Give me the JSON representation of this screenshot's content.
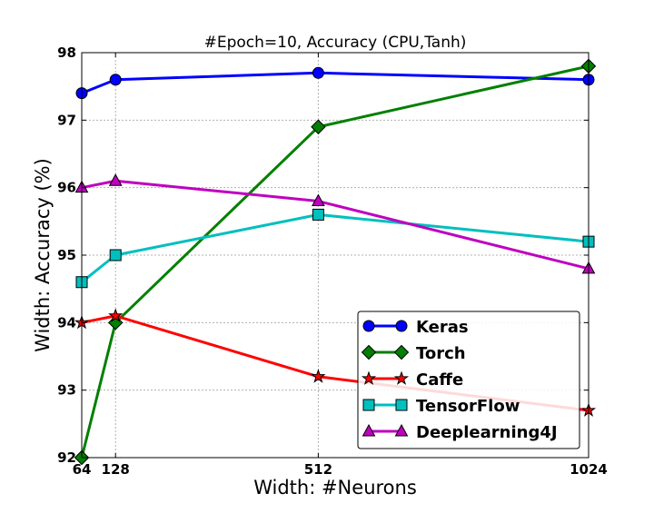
{
  "chart_data": {
    "type": "line",
    "title": "#Epoch=10, Accuracy (CPU,Tanh)",
    "xlabel": "Width: #Neurons",
    "ylabel": "Width: Accuracy (%)",
    "x": [
      64,
      128,
      512,
      1024
    ],
    "x_ticks": [
      "64",
      "128",
      "512",
      "1024"
    ],
    "xlim": [
      64,
      1024
    ],
    "ylim": [
      92,
      98
    ],
    "y_ticks": [
      "92",
      "93",
      "94",
      "95",
      "96",
      "97",
      "98"
    ],
    "grid": true,
    "legend_position": "lower-right",
    "series": [
      {
        "name": "Keras",
        "values": [
          97.4,
          97.6,
          97.7,
          97.6
        ],
        "color": "#0000ff",
        "marker": "circle"
      },
      {
        "name": "Torch",
        "values": [
          92.0,
          94.0,
          96.9,
          97.8
        ],
        "color": "#008000",
        "marker": "diamond"
      },
      {
        "name": "Caffe",
        "values": [
          94.0,
          94.1,
          93.2,
          92.7
        ],
        "color": "#ff0000",
        "marker": "star"
      },
      {
        "name": "TensorFlow",
        "values": [
          94.6,
          95.0,
          95.6,
          95.2
        ],
        "color": "#00bfbf",
        "marker": "square"
      },
      {
        "name": "Deeplearning4J",
        "values": [
          96.0,
          96.1,
          95.8,
          94.8
        ],
        "color": "#bf00bf",
        "marker": "triangle"
      }
    ]
  }
}
